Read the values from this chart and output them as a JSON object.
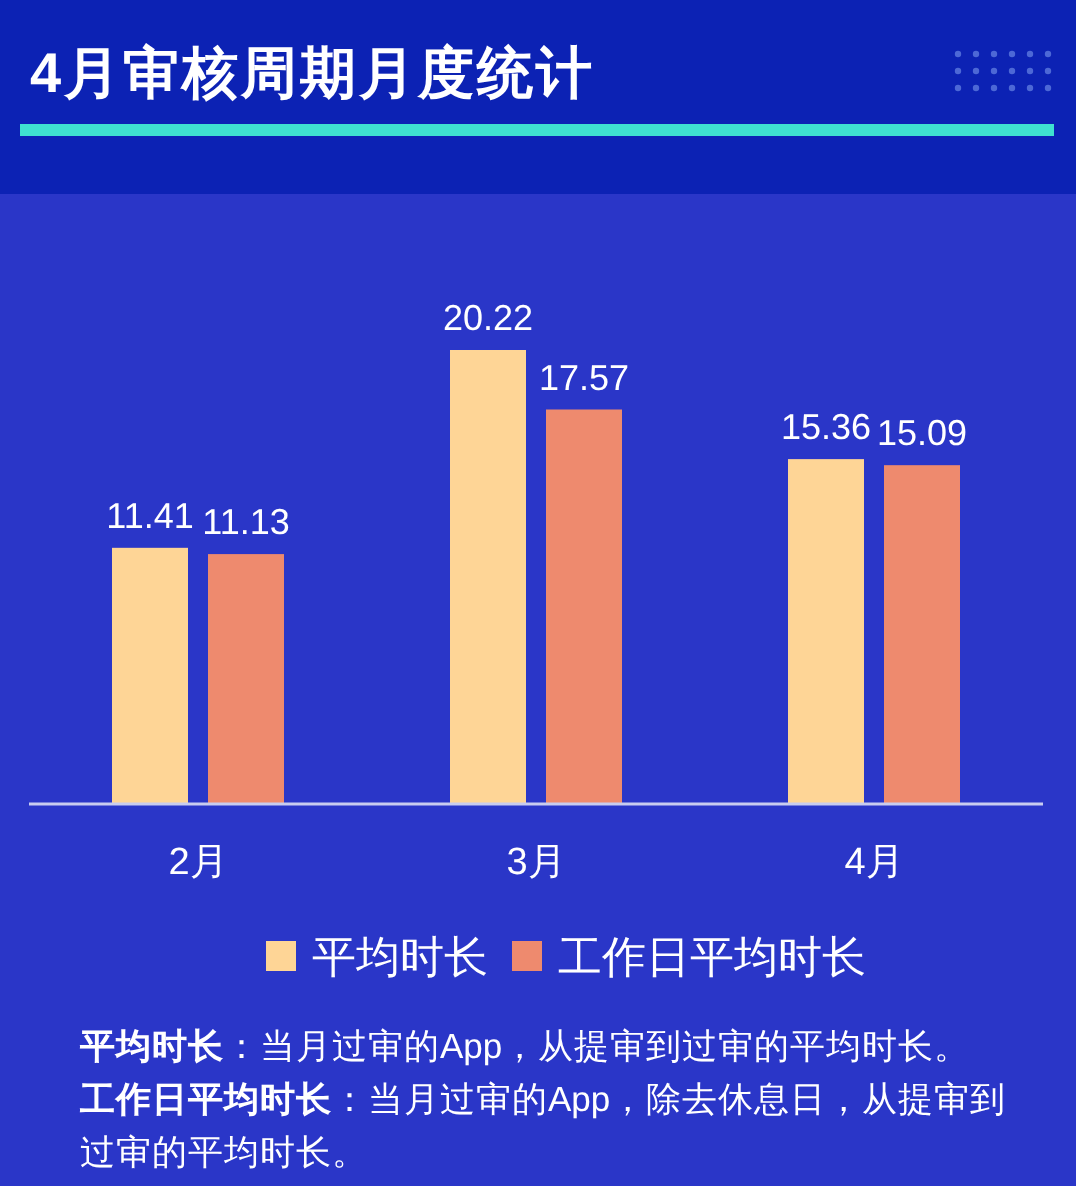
{
  "chart_data": {
    "type": "bar",
    "title": "4月审核周期月度统计",
    "categories": [
      "2月",
      "3月",
      "4月"
    ],
    "series": [
      {
        "name": "平均时长",
        "color": "#fed596",
        "values": [
          11.41,
          20.22,
          15.36
        ]
      },
      {
        "name": "工作日平均时长",
        "color": "#ee8a6e",
        "values": [
          11.13,
          17.57,
          15.09
        ]
      }
    ],
    "data_labels": true,
    "legend": "bottom",
    "annotations": [
      "平均时长：当月过审的App，从提审到过审的平均时长。",
      "工作日平均时长：当月过审的App，除去休息日，从提审到过审的平均时长。"
    ]
  }
}
